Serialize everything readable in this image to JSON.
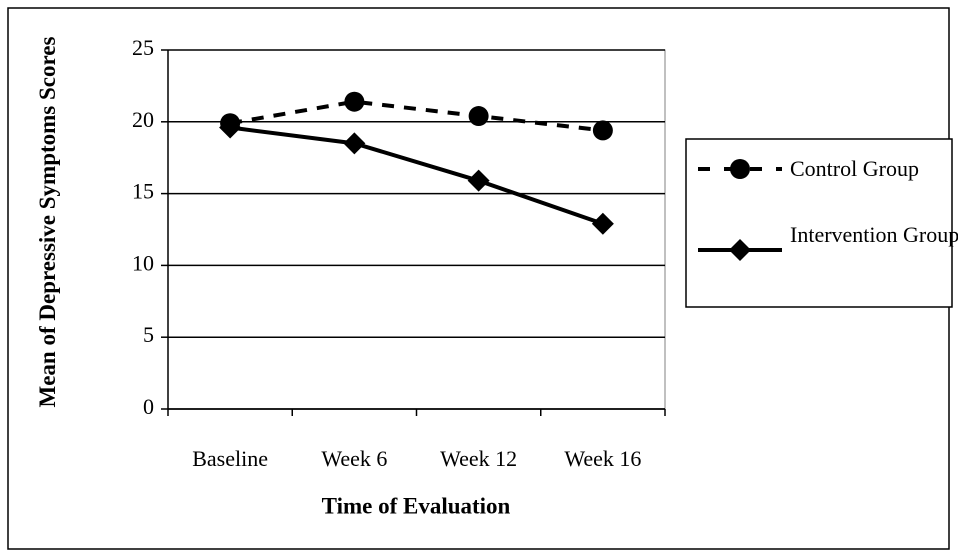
{
  "chart_data": {
    "type": "line",
    "x_label": "Time of Evaluation",
    "y_label": "Mean of Depressive Symptoms Scores",
    "categories": [
      "Baseline",
      "Week 6",
      "Week 12",
      "Week 16"
    ],
    "series": [
      {
        "name": "Control Group",
        "color": "#000000",
        "dash": true,
        "marker": "circle",
        "values": [
          19.9,
          21.4,
          20.4,
          19.4
        ]
      },
      {
        "name": "Intervention Group",
        "color": "#000000",
        "dash": false,
        "marker": "diamond",
        "values": [
          19.6,
          18.5,
          15.9,
          12.9
        ]
      }
    ],
    "ylim": [
      0,
      25
    ],
    "yticks": [
      0,
      5,
      10,
      15,
      20,
      25
    ],
    "grid": true,
    "legend": "right"
  }
}
